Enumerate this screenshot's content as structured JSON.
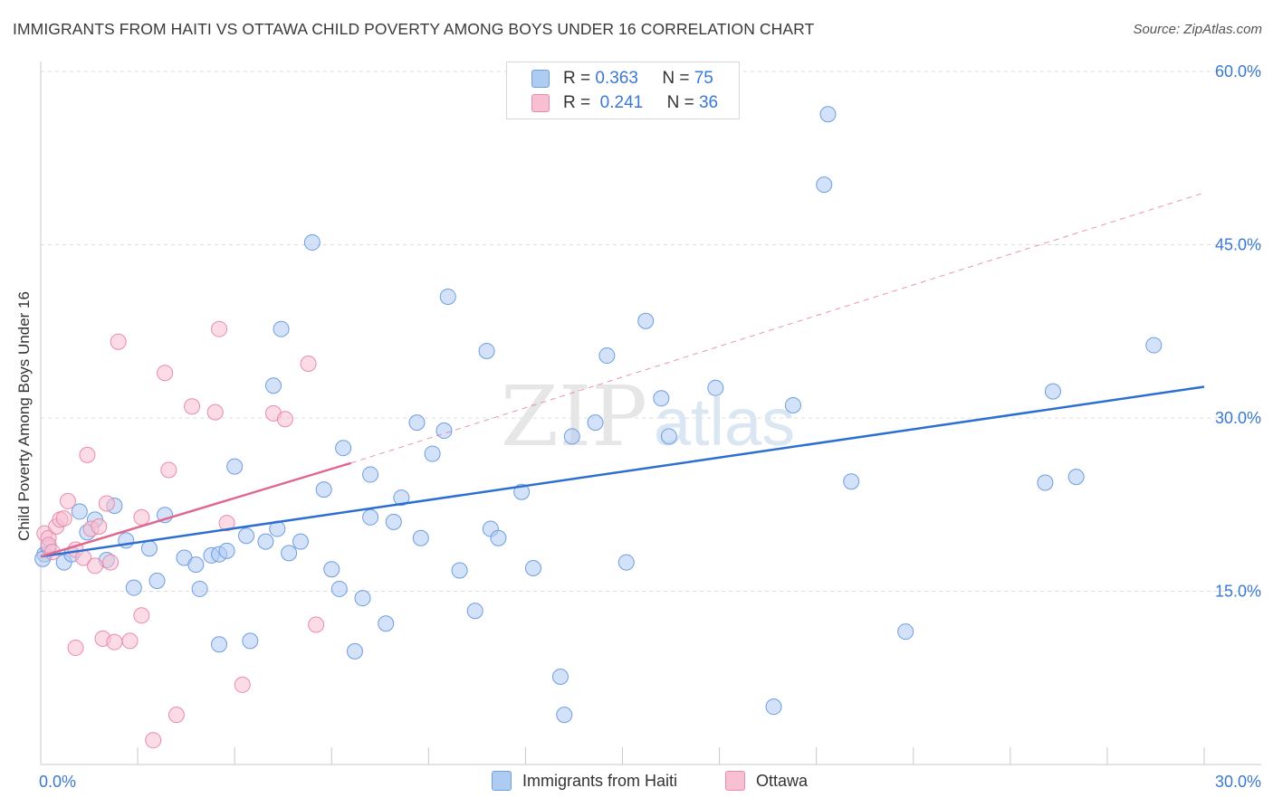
{
  "title": "IMMIGRANTS FROM HAITI VS OTTAWA CHILD POVERTY AMONG BOYS UNDER 16 CORRELATION CHART",
  "source": "Source: ZipAtlas.com",
  "watermark": {
    "zip": "ZIP",
    "atlas": "atlas"
  },
  "colors": {
    "blue_fill": "#aecbf2",
    "blue_stroke": "#6d9ee0",
    "blue_line": "#2c6fd1",
    "pink_fill": "#f7c0d2",
    "pink_stroke": "#e98bab",
    "pink_line": "#e0688f",
    "axis_text": "#3a78d4",
    "grid": "#dcdcdc"
  },
  "legend_top": [
    {
      "r_label": "R = ",
      "r_value": "0.363",
      "n_label": "N = ",
      "n_value": "75",
      "color": "blue"
    },
    {
      "r_label": "R = ",
      "r_value": "0.241",
      "n_label": "N = ",
      "n_value": "36",
      "color": "pink"
    }
  ],
  "legend_bottom": [
    {
      "label": "Immigrants from Haiti",
      "color": "blue"
    },
    {
      "label": "Ottawa",
      "color": "pink"
    }
  ],
  "chart_data": {
    "type": "scatter",
    "xlabel": "",
    "ylabel": "Child Poverty Among Boys Under 16",
    "xlim": [
      0,
      30
    ],
    "ylim": [
      0,
      60
    ],
    "x_tick_labels": [
      {
        "value": 0,
        "label": "0.0%"
      },
      {
        "value": 30,
        "label": "30.0%"
      }
    ],
    "y_tick_labels": [
      {
        "value": 15,
        "label": "15.0%"
      },
      {
        "value": 30,
        "label": "30.0%"
      },
      {
        "value": 45,
        "label": "45.0%"
      },
      {
        "value": 60,
        "label": "60.0%"
      }
    ],
    "grid": true,
    "series": [
      {
        "name": "Immigrants from Haiti",
        "color": "blue",
        "trend": {
          "x0": 0,
          "y0": 18.0,
          "x1": 30,
          "y1": 32.7
        },
        "points": [
          [
            0.1,
            18.2
          ],
          [
            0.2,
            18.8
          ],
          [
            0.6,
            17.5
          ],
          [
            0.8,
            18.2
          ],
          [
            1.0,
            21.9
          ],
          [
            1.2,
            20.1
          ],
          [
            1.4,
            21.2
          ],
          [
            1.9,
            22.4
          ],
          [
            1.7,
            17.7
          ],
          [
            2.2,
            19.4
          ],
          [
            2.4,
            15.3
          ],
          [
            2.8,
            18.7
          ],
          [
            3.0,
            15.9
          ],
          [
            3.2,
            21.6
          ],
          [
            3.7,
            17.9
          ],
          [
            4.0,
            17.3
          ],
          [
            4.1,
            15.2
          ],
          [
            4.4,
            18.1
          ],
          [
            4.6,
            10.4
          ],
          [
            4.6,
            18.2
          ],
          [
            4.8,
            18.5
          ],
          [
            5.0,
            25.8
          ],
          [
            5.3,
            19.8
          ],
          [
            5.4,
            10.7
          ],
          [
            5.8,
            19.3
          ],
          [
            6.1,
            20.4
          ],
          [
            6.0,
            32.8
          ],
          [
            6.2,
            37.7
          ],
          [
            6.4,
            18.3
          ],
          [
            6.7,
            19.3
          ],
          [
            7.0,
            45.2
          ],
          [
            7.3,
            23.8
          ],
          [
            7.5,
            16.9
          ],
          [
            7.7,
            15.2
          ],
          [
            7.8,
            27.4
          ],
          [
            8.1,
            9.8
          ],
          [
            8.3,
            14.4
          ],
          [
            8.5,
            21.4
          ],
          [
            8.5,
            25.1
          ],
          [
            8.9,
            12.2
          ],
          [
            9.1,
            21.0
          ],
          [
            9.3,
            23.1
          ],
          [
            9.7,
            29.6
          ],
          [
            9.8,
            19.6
          ],
          [
            10.1,
            26.9
          ],
          [
            10.4,
            28.9
          ],
          [
            10.5,
            40.5
          ],
          [
            10.8,
            16.8
          ],
          [
            11.2,
            13.3
          ],
          [
            11.5,
            35.8
          ],
          [
            11.6,
            20.4
          ],
          [
            11.8,
            19.6
          ],
          [
            12.4,
            23.6
          ],
          [
            12.7,
            17.0
          ],
          [
            13.4,
            7.6
          ],
          [
            13.5,
            4.3
          ],
          [
            13.7,
            28.4
          ],
          [
            14.3,
            29.6
          ],
          [
            14.6,
            35.4
          ],
          [
            15.1,
            17.5
          ],
          [
            15.6,
            38.4
          ],
          [
            16.0,
            31.7
          ],
          [
            16.2,
            28.4
          ],
          [
            17.4,
            32.6
          ],
          [
            18.9,
            5.0
          ],
          [
            19.4,
            31.1
          ],
          [
            20.2,
            50.2
          ],
          [
            20.3,
            56.3
          ],
          [
            20.9,
            24.5
          ],
          [
            22.3,
            11.5
          ],
          [
            25.9,
            24.4
          ],
          [
            26.1,
            32.3
          ],
          [
            26.7,
            24.9
          ],
          [
            28.7,
            36.3
          ],
          [
            0.05,
            17.8
          ]
        ]
      },
      {
        "name": "Ottawa",
        "color": "pink",
        "trend": {
          "x0": 0,
          "y0": 18.0,
          "x1": 8.0,
          "y1": 26.1
        },
        "trend_dashed": {
          "x0": 8.0,
          "y0": 26.1,
          "x1": 30,
          "y1": 49.5
        },
        "points": [
          [
            0.1,
            20.0
          ],
          [
            0.2,
            19.6
          ],
          [
            0.2,
            19.0
          ],
          [
            0.3,
            18.4
          ],
          [
            0.4,
            20.6
          ],
          [
            0.5,
            21.2
          ],
          [
            0.6,
            21.3
          ],
          [
            0.7,
            22.8
          ],
          [
            0.9,
            18.6
          ],
          [
            0.9,
            10.1
          ],
          [
            1.1,
            17.9
          ],
          [
            1.2,
            26.8
          ],
          [
            1.3,
            20.4
          ],
          [
            1.4,
            17.2
          ],
          [
            1.5,
            20.6
          ],
          [
            1.6,
            10.9
          ],
          [
            1.7,
            22.6
          ],
          [
            1.8,
            17.5
          ],
          [
            1.9,
            10.6
          ],
          [
            2.0,
            36.6
          ],
          [
            2.3,
            10.7
          ],
          [
            2.6,
            12.9
          ],
          [
            2.6,
            21.4
          ],
          [
            2.9,
            2.1
          ],
          [
            3.2,
            33.9
          ],
          [
            3.3,
            25.5
          ],
          [
            3.5,
            4.3
          ],
          [
            3.9,
            31.0
          ],
          [
            4.5,
            30.5
          ],
          [
            4.6,
            37.7
          ],
          [
            4.8,
            20.9
          ],
          [
            5.2,
            6.9
          ],
          [
            6.0,
            30.4
          ],
          [
            6.3,
            29.9
          ],
          [
            6.9,
            34.7
          ],
          [
            7.1,
            12.1
          ]
        ]
      }
    ]
  }
}
